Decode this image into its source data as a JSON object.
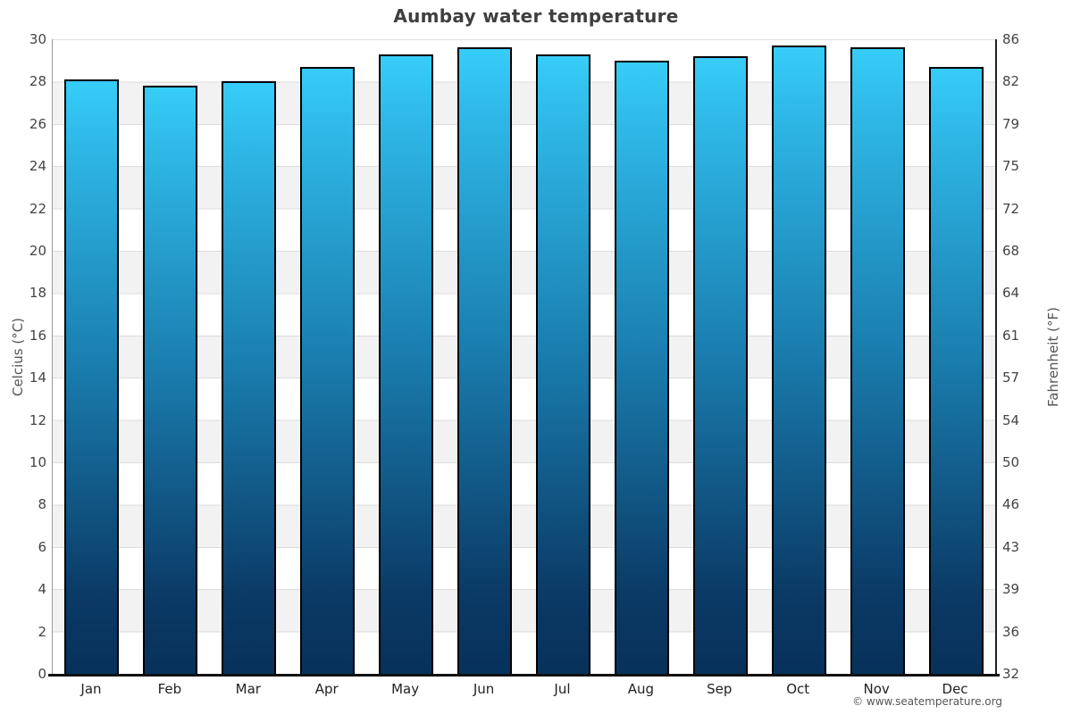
{
  "header": {
    "title": "Aumbay water temperature"
  },
  "footer": {
    "text": "© www.seatemperature.org"
  },
  "chart_data": {
    "type": "bar",
    "title": "Aumbay water temperature",
    "categories": [
      "Jan",
      "Feb",
      "Mar",
      "Apr",
      "May",
      "Jun",
      "Jul",
      "Aug",
      "Sep",
      "Oct",
      "Nov",
      "Dec"
    ],
    "values": [
      28.1,
      27.8,
      28.0,
      28.7,
      29.3,
      29.6,
      29.3,
      29.0,
      29.2,
      29.7,
      29.6,
      28.7
    ],
    "unit": "°C",
    "y_axis_left": {
      "label": "Celcius (°C)",
      "ticks": [
        0,
        2,
        4,
        6,
        8,
        10,
        12,
        14,
        16,
        18,
        20,
        22,
        24,
        26,
        28,
        30
      ],
      "range": [
        0,
        30
      ]
    },
    "y_axis_right": {
      "label": "Fahrenheit (°F)",
      "tick_labels": [
        "32",
        "36",
        "39",
        "43",
        "46",
        "50",
        "54",
        "57",
        "61",
        "64",
        "68",
        "72",
        "75",
        "79",
        "82",
        "86"
      ],
      "range": [
        32,
        86
      ]
    },
    "legend": "none",
    "grid": "alternating horizontal bands every 2 °C",
    "colors": {
      "bar_gradient_top": "#37cdf8",
      "bar_gradient_mid": "#1a7fb0",
      "bar_gradient_bottom": "#07315a",
      "bar_border": "#000000",
      "band_light": "#ffffff",
      "band_gray": "#f2f2f2",
      "gridline": "#dcdcdc",
      "axis_bottom": "#111111",
      "title_text": "#3f3f3f",
      "tick_text": "#444444"
    }
  }
}
